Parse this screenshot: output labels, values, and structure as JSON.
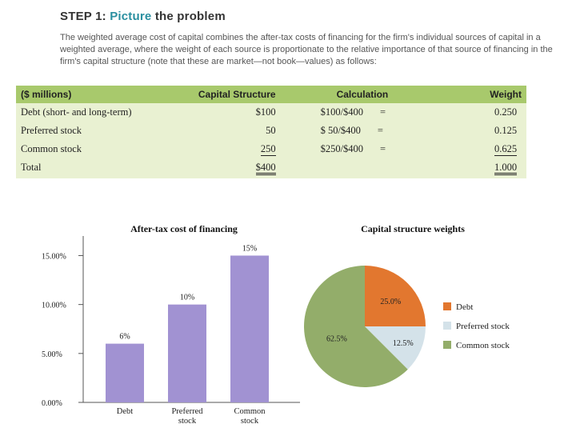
{
  "heading": {
    "step": "STEP 1:",
    "highlight": "Picture",
    "rest": "the problem"
  },
  "intro": "The weighted average cost of capital combines the after-tax costs of financing for the firm's individual sources of capital in a weighted average, where the weight of each source is proportionate to the relative importance of that source of financing in the firm's capital structure (note that these are market—not book—values) as follows:",
  "table": {
    "headers": [
      "($ millions)",
      "Capital Structure",
      "Calculation",
      "Weight"
    ],
    "rows": [
      {
        "label": "Debt (short- and long-term)",
        "capital": "$100",
        "calc": "$100/$400",
        "eq": "=",
        "weight": "0.250"
      },
      {
        "label": "Preferred stock",
        "capital": "50",
        "calc": "$ 50/$400",
        "eq": "=",
        "weight": "0.125"
      },
      {
        "label": "Common stock",
        "capital": "250",
        "calc": "$250/$400",
        "eq": "=",
        "weight": "0.625"
      },
      {
        "label": "Total",
        "capital": "$400",
        "calc": "",
        "eq": "",
        "weight": "1.000"
      }
    ]
  },
  "colors": {
    "bar": "#a192d2",
    "debt": "#e2772f",
    "preferred": "#d4e2e9",
    "common": "#93ad6a",
    "header": "#a8c96c",
    "table_bg": "#e9f1d2"
  },
  "chart_data": [
    {
      "type": "bar",
      "title": "After-tax cost of financing",
      "categories": [
        "Debt",
        "Preferred stock",
        "Common stock"
      ],
      "category_lines": [
        [
          "Debt"
        ],
        [
          "Preferred",
          "stock"
        ],
        [
          "Common",
          "stock"
        ]
      ],
      "values": [
        6,
        10,
        15
      ],
      "data_labels": [
        "6%",
        "10%",
        "15%"
      ],
      "yticks": [
        0,
        5,
        10,
        15
      ],
      "ytick_labels": [
        "0.00%",
        "5.00%",
        "10.00%",
        "15.00%"
      ],
      "ylim": [
        0,
        17
      ],
      "xlabel": "",
      "ylabel": ""
    },
    {
      "type": "pie",
      "title": "Capital structure weights",
      "labels": [
        "Debt",
        "Preferred stock",
        "Common stock"
      ],
      "values": [
        25.0,
        12.5,
        62.5
      ],
      "data_labels": [
        "25.0%",
        "12.5%",
        "62.5%"
      ],
      "legend": "right"
    }
  ]
}
